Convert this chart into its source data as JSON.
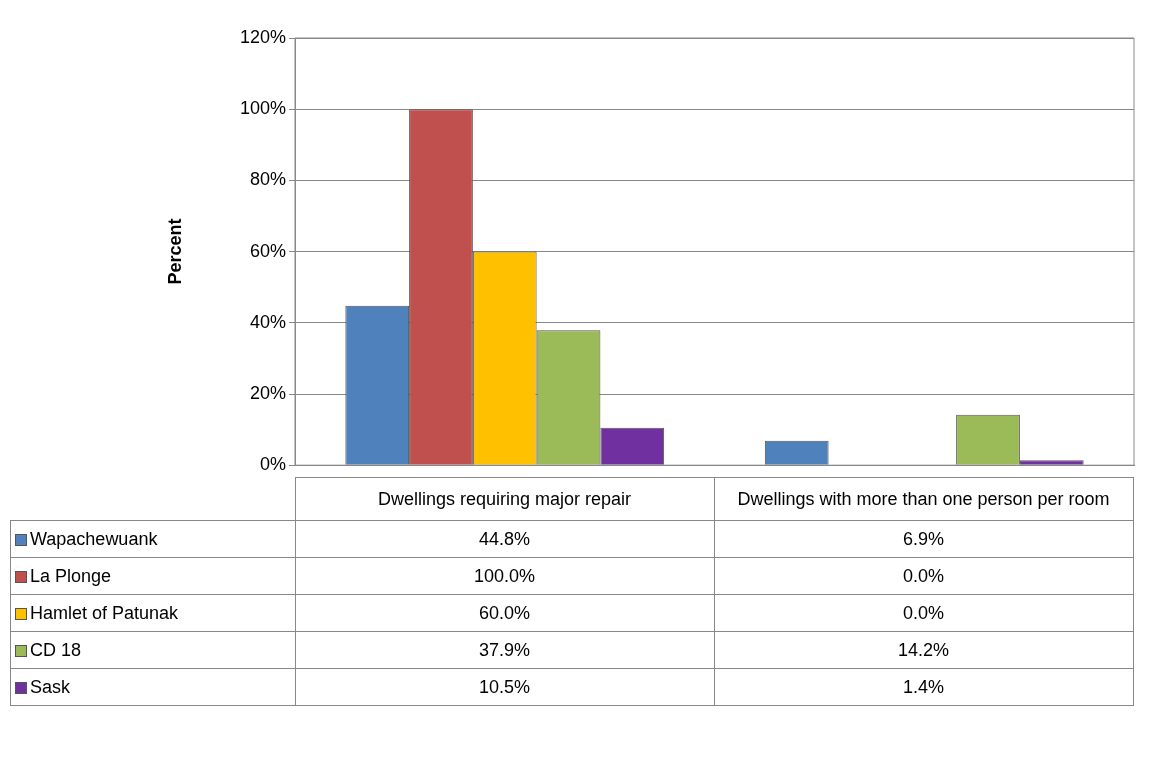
{
  "chart_data": {
    "type": "bar",
    "ylabel": "Percent",
    "categories": [
      "Dwellings requiring major repair",
      "Dwellings with more than one person per room"
    ],
    "series": [
      {
        "name": "Wapachewuank",
        "color": "#4f81bd",
        "values": [
          44.8,
          6.9
        ],
        "value_labels": [
          "44.8%",
          "6.9%"
        ]
      },
      {
        "name": "La Plonge",
        "color": "#c0504d",
        "values": [
          100.0,
          0.0
        ],
        "value_labels": [
          "100.0%",
          "0.0%"
        ]
      },
      {
        "name": "Hamlet of Patunak",
        "color": "#ffc000",
        "values": [
          60.0,
          0.0
        ],
        "value_labels": [
          "60.0%",
          "0.0%"
        ]
      },
      {
        "name": "CD 18",
        "color": "#9bbb59",
        "values": [
          37.9,
          14.2
        ],
        "value_labels": [
          "37.9%",
          "14.2%"
        ]
      },
      {
        "name": "Sask",
        "color": "#7030a0",
        "values": [
          10.5,
          1.4
        ],
        "value_labels": [
          "10.5%",
          "1.4%"
        ]
      }
    ],
    "ylim": [
      0,
      120
    ],
    "yticks": [
      {
        "value": 0,
        "label": "0%"
      },
      {
        "value": 20,
        "label": "20%"
      },
      {
        "value": 40,
        "label": "40%"
      },
      {
        "value": 60,
        "label": "60%"
      },
      {
        "value": 80,
        "label": "80%"
      },
      {
        "value": 100,
        "label": "100%"
      },
      {
        "value": 120,
        "label": "120%"
      }
    ],
    "grid": "y",
    "legend": "bottom"
  }
}
